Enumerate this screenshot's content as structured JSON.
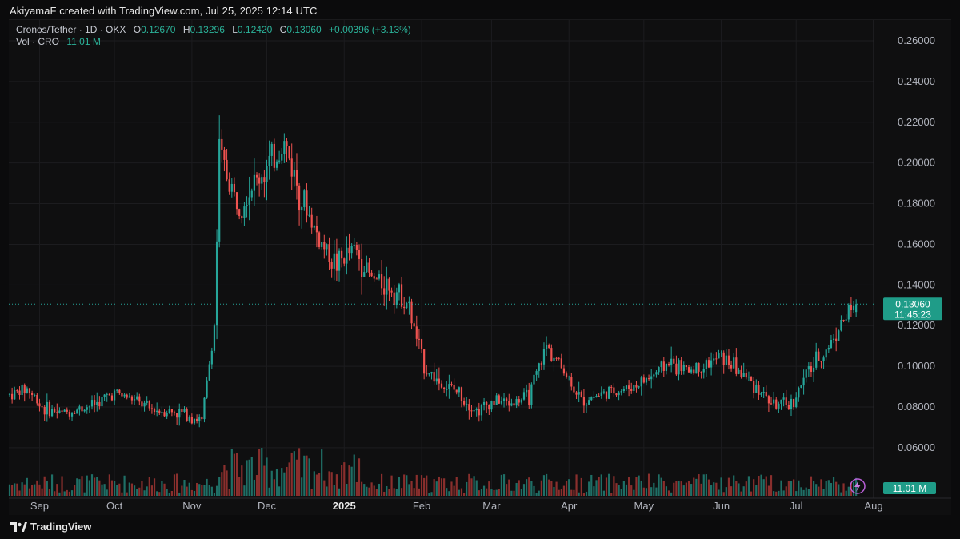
{
  "header": {
    "credit": "AkiyamaF created with TradingView.com, Jul 25, 2025 12:14 UTC"
  },
  "legend": {
    "symbol": "Cronos/Tether · 1D · OKX",
    "o_label": "O",
    "o_value": "0.12670",
    "h_label": "H",
    "h_value": "0.13296",
    "l_label": "L",
    "l_value": "0.12420",
    "c_label": "C",
    "c_value": "0.13060",
    "change": "+0.00396 (+3.13%)",
    "vol_label": "Vol · CRO",
    "vol_value": "11.01 M"
  },
  "footer": {
    "brand": "TradingView"
  },
  "colors": {
    "up": "#26a69a",
    "down": "#ef5350",
    "background": "#0f0f10",
    "grid": "#1c1c1f",
    "axis_text": "#b2b5be",
    "price_badge": "#1f9c88"
  },
  "chart_data": {
    "type": "candlestick",
    "symbol": "Cronos/Tether",
    "interval": "1D",
    "exchange": "OKX",
    "ylim": [
      0.05,
      0.265
    ],
    "y_ticks": [
      "0.06000",
      "0.08000",
      "0.10000",
      "0.12000",
      "0.14000",
      "0.16000",
      "0.18000",
      "0.20000",
      "0.22000",
      "0.24000",
      "0.26000"
    ],
    "x_tick_labels": [
      "Sep",
      "Oct",
      "Nov",
      "Dec",
      "2025",
      "Feb",
      "Mar",
      "Apr",
      "May",
      "Jun",
      "Jul",
      "Aug"
    ],
    "last_price": "0.13060",
    "countdown": "11:45:23",
    "volume_label": "11.01 M",
    "grid": true,
    "close_series_approx": [
      {
        "date": "2024-08-20",
        "close": 0.086
      },
      {
        "date": "2024-08-27",
        "close": 0.089
      },
      {
        "date": "2024-09-03",
        "close": 0.079
      },
      {
        "date": "2024-09-10",
        "close": 0.077
      },
      {
        "date": "2024-09-17",
        "close": 0.079
      },
      {
        "date": "2024-09-24",
        "close": 0.082
      },
      {
        "date": "2024-10-01",
        "close": 0.087
      },
      {
        "date": "2024-10-08",
        "close": 0.084
      },
      {
        "date": "2024-10-15",
        "close": 0.079
      },
      {
        "date": "2024-10-22",
        "close": 0.078
      },
      {
        "date": "2024-10-29",
        "close": 0.077
      },
      {
        "date": "2024-11-05",
        "close": 0.073
      },
      {
        "date": "2024-11-10",
        "close": 0.12
      },
      {
        "date": "2024-11-12",
        "close": 0.205
      },
      {
        "date": "2024-11-19",
        "close": 0.18
      },
      {
        "date": "2024-11-26",
        "close": 0.19
      },
      {
        "date": "2024-12-03",
        "close": 0.2
      },
      {
        "date": "2024-12-08",
        "close": 0.21
      },
      {
        "date": "2024-12-15",
        "close": 0.183
      },
      {
        "date": "2024-12-22",
        "close": 0.162
      },
      {
        "date": "2024-12-29",
        "close": 0.15
      },
      {
        "date": "2025-01-05",
        "close": 0.158
      },
      {
        "date": "2025-01-12",
        "close": 0.143
      },
      {
        "date": "2025-01-19",
        "close": 0.14
      },
      {
        "date": "2025-01-26",
        "close": 0.132
      },
      {
        "date": "2025-02-02",
        "close": 0.1
      },
      {
        "date": "2025-02-09",
        "close": 0.091
      },
      {
        "date": "2025-02-16",
        "close": 0.087
      },
      {
        "date": "2025-02-23",
        "close": 0.078
      },
      {
        "date": "2025-03-02",
        "close": 0.083
      },
      {
        "date": "2025-03-09",
        "close": 0.082
      },
      {
        "date": "2025-03-16",
        "close": 0.085
      },
      {
        "date": "2025-03-23",
        "close": 0.11
      },
      {
        "date": "2025-03-30",
        "close": 0.098
      },
      {
        "date": "2025-04-06",
        "close": 0.083
      },
      {
        "date": "2025-04-13",
        "close": 0.086
      },
      {
        "date": "2025-04-20",
        "close": 0.088
      },
      {
        "date": "2025-04-27",
        "close": 0.09
      },
      {
        "date": "2025-05-04",
        "close": 0.095
      },
      {
        "date": "2025-05-11",
        "close": 0.102
      },
      {
        "date": "2025-05-18",
        "close": 0.098
      },
      {
        "date": "2025-05-25",
        "close": 0.1
      },
      {
        "date": "2025-06-01",
        "close": 0.105
      },
      {
        "date": "2025-06-08",
        "close": 0.098
      },
      {
        "date": "2025-06-15",
        "close": 0.09
      },
      {
        "date": "2025-06-22",
        "close": 0.081
      },
      {
        "date": "2025-06-29",
        "close": 0.081
      },
      {
        "date": "2025-07-06",
        "close": 0.098
      },
      {
        "date": "2025-07-13",
        "close": 0.108
      },
      {
        "date": "2025-07-20",
        "close": 0.123
      },
      {
        "date": "2025-07-25",
        "close": 0.1306
      }
    ]
  }
}
